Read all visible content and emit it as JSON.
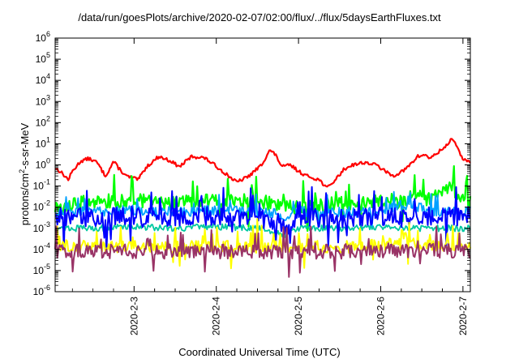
{
  "chart_data": {
    "type": "line",
    "title": "/data/run/goesPlots/archive/2020-02-07/02:00/flux/../flux/5daysEarthFluxes.txt",
    "xlabel": "Coordinated Universal Time (UTC)",
    "ylabel": {
      "pre": "protons/cm",
      "sup": "2",
      "post": "-s-sr-MeV"
    },
    "yscale": "log",
    "ylim": [
      1e-06,
      1000000.0
    ],
    "y_ticks": [
      {
        "value": 1000000.0,
        "base": "10",
        "exp": "6"
      },
      {
        "value": 100000.0,
        "base": "10",
        "exp": "5"
      },
      {
        "value": 10000.0,
        "base": "10",
        "exp": "4"
      },
      {
        "value": 1000.0,
        "base": "10",
        "exp": "3"
      },
      {
        "value": 100.0,
        "base": "10",
        "exp": "2"
      },
      {
        "value": 10.0,
        "base": "10",
        "exp": "1"
      },
      {
        "value": 1.0,
        "base": "10",
        "exp": "0"
      },
      {
        "value": 0.1,
        "base": "10",
        "exp": "-1"
      },
      {
        "value": 0.01,
        "base": "10",
        "exp": "-2"
      },
      {
        "value": 0.001,
        "base": "10",
        "exp": "-3"
      },
      {
        "value": 0.0001,
        "base": "10",
        "exp": "-4"
      },
      {
        "value": 1e-05,
        "base": "10",
        "exp": "-5"
      },
      {
        "value": 1e-06,
        "base": "10",
        "exp": "-6"
      }
    ],
    "x_range_days": [
      2.04,
      7.09
    ],
    "x_ticks": [
      {
        "label": "2020-2-3",
        "value": 3
      },
      {
        "label": "2020-2-4",
        "value": 4
      },
      {
        "label": "2020-2-5",
        "value": 5
      },
      {
        "label": "2020-2-6",
        "value": 6
      },
      {
        "label": "2020-2-7",
        "value": 7
      }
    ],
    "grid": false,
    "legend": "none",
    "series": [
      {
        "color": "#ff0000",
        "width": 2.2,
        "noise": 0.08,
        "spikes": [],
        "points": [
          [
            2.04,
            0.7
          ],
          [
            2.1,
            0.5
          ],
          [
            2.2,
            0.2
          ],
          [
            2.25,
            0.5
          ],
          [
            2.35,
            1.5
          ],
          [
            2.45,
            2
          ],
          [
            2.55,
            1.3
          ],
          [
            2.65,
            0.3
          ],
          [
            2.7,
            0.6
          ],
          [
            2.75,
            1.5
          ],
          [
            2.8,
            0.8
          ],
          [
            2.9,
            0.3
          ],
          [
            3.05,
            0.2
          ],
          [
            3.15,
            0.8
          ],
          [
            3.3,
            2.5
          ],
          [
            3.45,
            1.5
          ],
          [
            3.55,
            0.8
          ],
          [
            3.7,
            2.5
          ],
          [
            3.85,
            2.2
          ],
          [
            3.95,
            1.2
          ],
          [
            4.05,
            0.6
          ],
          [
            4.15,
            0.3
          ],
          [
            4.25,
            0.15
          ],
          [
            4.4,
            0.3
          ],
          [
            4.55,
            1
          ],
          [
            4.65,
            5
          ],
          [
            4.72,
            3
          ],
          [
            4.8,
            0.8
          ],
          [
            4.9,
            1
          ],
          [
            5.0,
            0.5
          ],
          [
            5.1,
            0.3
          ],
          [
            5.25,
            0.2
          ],
          [
            5.35,
            0.08
          ],
          [
            5.45,
            0.2
          ],
          [
            5.55,
            0.6
          ],
          [
            5.65,
            1
          ],
          [
            5.8,
            1.3
          ],
          [
            5.95,
            1
          ],
          [
            6.05,
            0.5
          ],
          [
            6.15,
            0.3
          ],
          [
            6.3,
            0.6
          ],
          [
            6.45,
            2.5
          ],
          [
            6.55,
            3
          ],
          [
            6.6,
            2
          ],
          [
            6.7,
            4
          ],
          [
            6.8,
            8
          ],
          [
            6.87,
            20
          ],
          [
            6.93,
            6
          ],
          [
            7.0,
            2
          ],
          [
            7.09,
            1.2
          ]
        ]
      },
      {
        "color": "#00ff00",
        "width": 2.2,
        "noise": 0.35,
        "spikes": [
          [
            3.88,
            0.04
          ],
          [
            4.82,
            0.04
          ],
          [
            5.65,
            0.02
          ]
        ],
        "points": [
          [
            2.04,
            0.008
          ],
          [
            2.5,
            0.02
          ],
          [
            3.0,
            0.02
          ],
          [
            3.5,
            0.015
          ],
          [
            4.0,
            0.02
          ],
          [
            4.5,
            0.02
          ],
          [
            5.0,
            0.01
          ],
          [
            5.5,
            0.015
          ],
          [
            6.0,
            0.02
          ],
          [
            6.3,
            0.02
          ],
          [
            6.4,
            0.05
          ],
          [
            6.6,
            0.02
          ],
          [
            6.7,
            0.07
          ],
          [
            6.9,
            0.07
          ],
          [
            6.95,
            0.02
          ],
          [
            7.09,
            0.02
          ]
        ]
      },
      {
        "color": "#00c8a0",
        "width": 1.8,
        "noise": 0.15,
        "spikes": [],
        "points": [
          [
            2.04,
            0.001
          ],
          [
            2.5,
            0.001
          ],
          [
            3.0,
            0.0012
          ],
          [
            3.5,
            0.001
          ],
          [
            4.0,
            0.0012
          ],
          [
            4.5,
            0.001
          ],
          [
            4.85,
            0.0005
          ],
          [
            5.0,
            0.001
          ],
          [
            5.5,
            0.001
          ],
          [
            6.0,
            0.0012
          ],
          [
            6.5,
            0.001
          ],
          [
            7.09,
            0.001
          ]
        ]
      },
      {
        "color": "#00a0ff",
        "width": 1.8,
        "noise": 0.25,
        "spikes": [],
        "points": [
          [
            2.04,
            0.006
          ],
          [
            2.5,
            0.006
          ],
          [
            3.0,
            0.007
          ],
          [
            3.5,
            0.006
          ],
          [
            4.0,
            0.007
          ],
          [
            4.5,
            0.006
          ],
          [
            4.85,
            0.004
          ],
          [
            5.0,
            0.006
          ],
          [
            5.5,
            0.006
          ],
          [
            6.0,
            0.006
          ],
          [
            6.2,
            0.012
          ],
          [
            6.5,
            0.01
          ],
          [
            6.6,
            0.006
          ],
          [
            7.09,
            0.006
          ]
        ]
      },
      {
        "color": "#0000ff",
        "width": 2.0,
        "noise": 0.45,
        "spikes": [
          [
            3.1,
            0.015
          ],
          [
            3.8,
            0.02
          ],
          [
            4.9,
            0.0002
          ]
        ],
        "points": [
          [
            2.04,
            0.004
          ],
          [
            2.5,
            0.003
          ],
          [
            3.0,
            0.004
          ],
          [
            3.5,
            0.003
          ],
          [
            4.0,
            0.004
          ],
          [
            4.5,
            0.003
          ],
          [
            4.8,
            0.002
          ],
          [
            4.9,
            0.0006
          ],
          [
            5.0,
            0.003
          ],
          [
            5.5,
            0.003
          ],
          [
            6.0,
            0.004
          ],
          [
            6.3,
            0.003
          ],
          [
            6.5,
            0.004
          ],
          [
            6.8,
            0.0035
          ],
          [
            7.09,
            0.004
          ]
        ]
      },
      {
        "color": "#ffff00",
        "width": 2.0,
        "noise": 0.3,
        "spikes": [
          [
            2.55,
            0.0007
          ],
          [
            3.25,
            0.0006
          ],
          [
            4.5,
            0.0005
          ],
          [
            5.0,
            0.0006
          ],
          [
            6.3,
            0.0006
          ],
          [
            6.6,
            0.0005
          ],
          [
            6.95,
            0.0006
          ]
        ],
        "points": [
          [
            2.04,
            0.00015
          ],
          [
            2.5,
            0.00013
          ],
          [
            3.0,
            0.00013
          ],
          [
            3.5,
            0.00013
          ],
          [
            4.0,
            0.00013
          ],
          [
            4.5,
            0.00013
          ],
          [
            5.0,
            0.00013
          ],
          [
            5.5,
            0.00013
          ],
          [
            6.0,
            0.00015
          ],
          [
            6.4,
            0.00025
          ],
          [
            6.6,
            0.00015
          ],
          [
            7.09,
            0.00015
          ]
        ]
      },
      {
        "color": "#993366",
        "width": 2.0,
        "noise": 0.35,
        "spikes": [
          [
            4.88,
            5e-06
          ],
          [
            2.6,
            0.0003
          ],
          [
            3.2,
            0.0003
          ],
          [
            5.2,
            0.0002
          ],
          [
            6.45,
            0.00025
          ]
        ],
        "points": [
          [
            2.04,
            8e-05
          ],
          [
            2.5,
            8e-05
          ],
          [
            3.0,
            8e-05
          ],
          [
            3.5,
            8e-05
          ],
          [
            4.0,
            8e-05
          ],
          [
            4.5,
            8e-05
          ],
          [
            4.8,
            8e-05
          ],
          [
            5.0,
            8e-05
          ],
          [
            5.5,
            8e-05
          ],
          [
            6.0,
            9e-05
          ],
          [
            6.5,
            9e-05
          ],
          [
            7.09,
            8e-05
          ]
        ]
      }
    ]
  }
}
